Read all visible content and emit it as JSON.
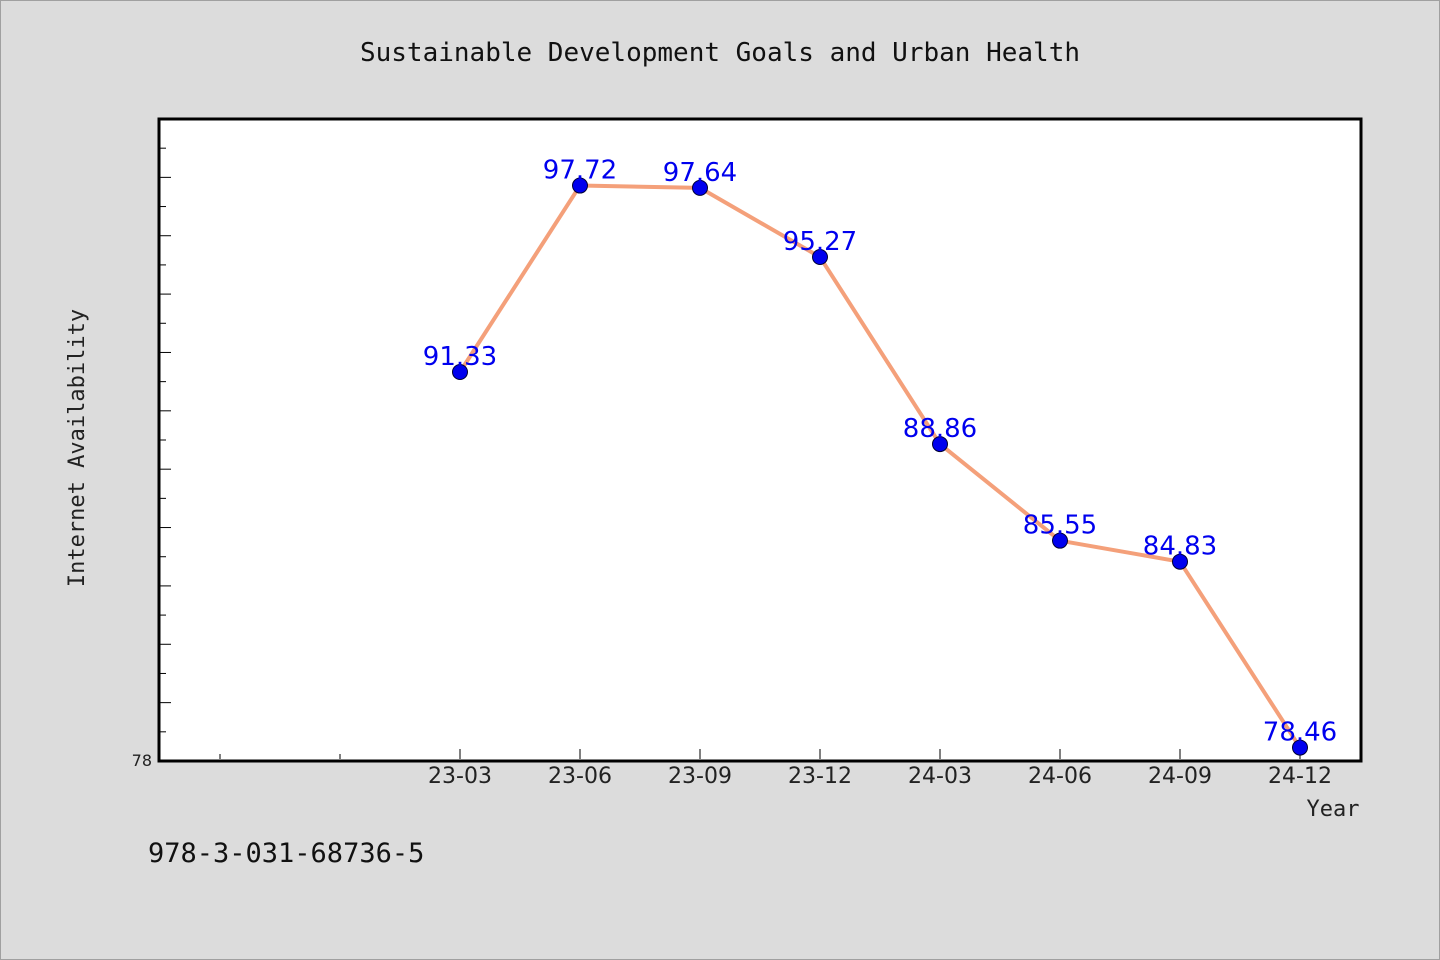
{
  "chart_data": {
    "type": "line",
    "title": "Sustainable Development Goals and Urban Health",
    "xlabel": "Year",
    "ylabel": "Internet Availability",
    "categories": [
      "23-03",
      "23-06",
      "23-09",
      "23-12",
      "24-03",
      "24-06",
      "24-09",
      "24-12"
    ],
    "values": [
      91.33,
      97.72,
      97.64,
      95.27,
      88.86,
      85.55,
      84.83,
      78.46
    ],
    "value_labels": [
      "91.33",
      "97.72",
      "97.64",
      "95.27",
      "88.86",
      "85.55",
      "84.83",
      "78.46"
    ],
    "ylim": [
      78,
      100
    ],
    "ytick_labels": [
      "78"
    ],
    "grid": false,
    "legend": "none",
    "line_color": "#f4a07a",
    "marker_color": "#0000ee",
    "label_color": "#0000ee"
  },
  "footer": {
    "isbn": "978-3-031-68736-5"
  }
}
